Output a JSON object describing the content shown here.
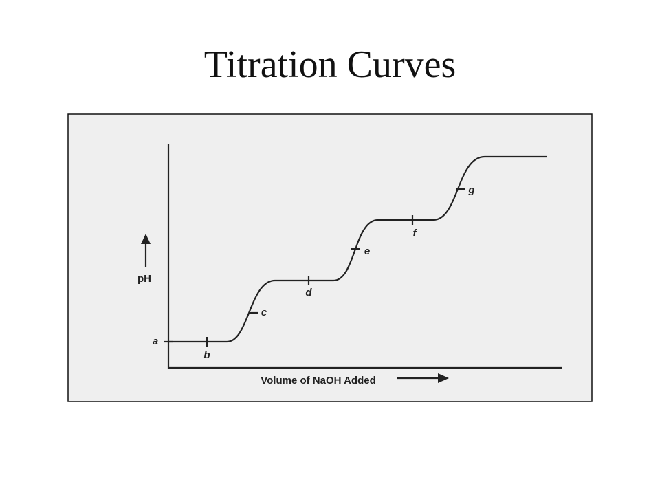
{
  "title": "Titration Curves",
  "axes": {
    "y_label": "pH",
    "x_label": "Volume of NaOH Added"
  },
  "points": [
    {
      "label": "a"
    },
    {
      "label": "b"
    },
    {
      "label": "c"
    },
    {
      "label": "d"
    },
    {
      "label": "e"
    },
    {
      "label": "f"
    },
    {
      "label": "g"
    }
  ]
}
